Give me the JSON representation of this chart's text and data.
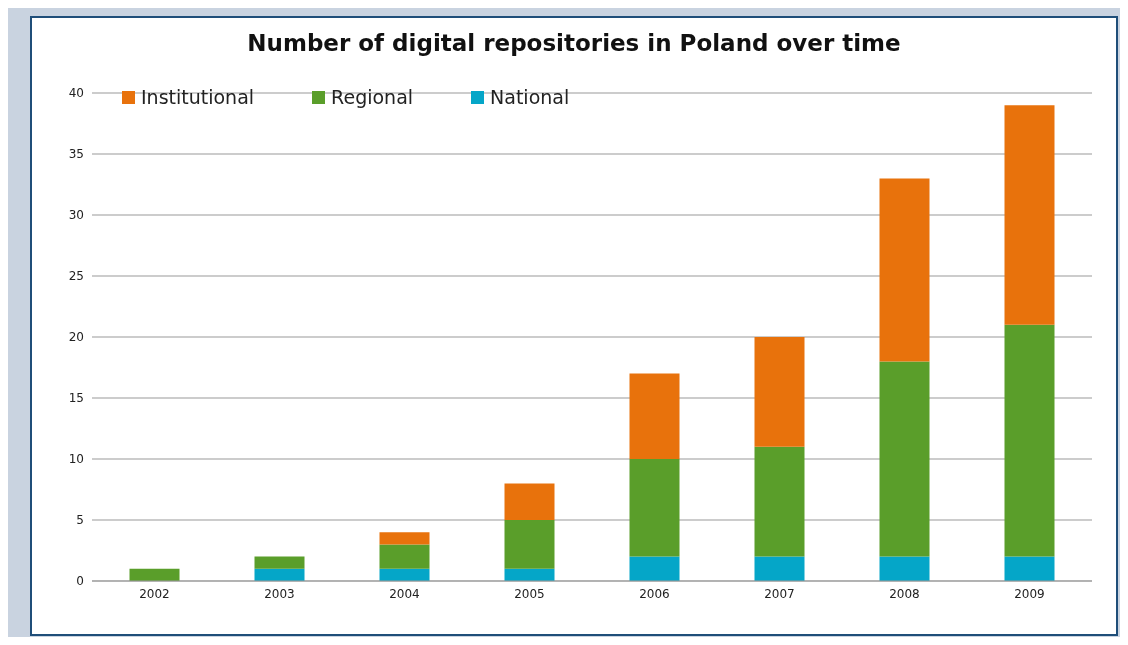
{
  "chart_data": {
    "type": "bar",
    "title": "Number of digital repositories in Poland over time",
    "categories": [
      "2002",
      "2003",
      "2004",
      "2005",
      "2006",
      "2007",
      "2008",
      "2009"
    ],
    "series": [
      {
        "name": "National",
        "color": "#05a6c8",
        "values": [
          0,
          1,
          1,
          1,
          2,
          2,
          2,
          2
        ]
      },
      {
        "name": "Regional",
        "color": "#5a9e2a",
        "values": [
          1,
          1,
          2,
          4,
          8,
          9,
          16,
          19
        ]
      },
      {
        "name": "Institutional",
        "color": "#e8720c",
        "values": [
          0,
          0,
          1,
          3,
          7,
          9,
          15,
          18
        ]
      }
    ],
    "stacked": true,
    "ylim": [
      0,
      40
    ],
    "yticks": [
      0,
      5,
      10,
      15,
      20,
      25,
      30,
      35,
      40
    ],
    "grid": "y",
    "legend": "top left"
  }
}
